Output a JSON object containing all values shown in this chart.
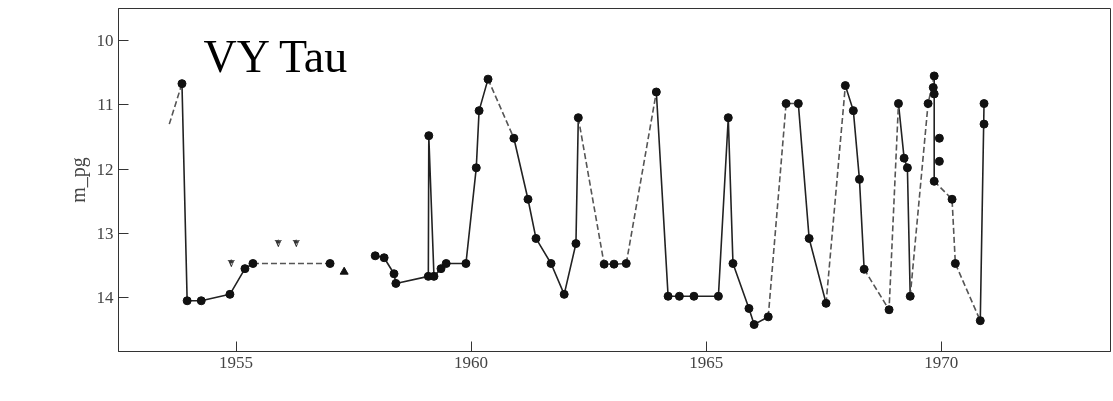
{
  "chart_data": {
    "type": "line",
    "title": "VY Tau",
    "ylabel": "m_pg",
    "xlim": [
      1952.5,
      1973.6
    ],
    "ylim": [
      14.84,
      9.5
    ],
    "xticks": [
      1955,
      1960,
      1965,
      1970
    ],
    "yticks": [
      10,
      11,
      12,
      13,
      14
    ],
    "grid": false,
    "series": [
      {
        "line_style": "solid",
        "color": "#222222",
        "x": [
          1953.85,
          1953.96,
          1954.26,
          1954.87,
          1955.19,
          1955.36,
          null,
          1957.96,
          1958.15,
          1958.36,
          1958.4,
          1959.09,
          1959.1,
          1959.21,
          1959.36,
          1959.47,
          1959.89,
          1960.11,
          1960.17,
          1960.36,
          null,
          1960.91,
          1961.21,
          1961.38,
          1961.7,
          1961.98,
          1962.23,
          1962.28,
          null,
          1963.94,
          1964.19,
          1964.43,
          1964.74,
          1965.26,
          1965.47,
          1965.57,
          1965.91,
          1966.02,
          1966.32,
          null,
          1966.96,
          1967.19,
          1967.55,
          null,
          1967.96,
          1968.13,
          1968.26,
          1968.36,
          null,
          1969.09,
          1969.21,
          1969.28,
          1969.34,
          null,
          1969.85,
          1969.85,
          null,
          1970.83,
          1970.91
        ],
        "values": [
          10.67,
          14.05,
          14.05,
          13.95,
          13.55,
          13.47,
          null,
          13.35,
          13.38,
          13.63,
          13.78,
          13.67,
          11.48,
          13.67,
          13.55,
          13.47,
          13.47,
          11.98,
          11.09,
          10.6,
          null,
          11.52,
          12.47,
          13.08,
          13.47,
          13.95,
          13.16,
          11.2,
          null,
          10.8,
          13.98,
          13.98,
          13.98,
          13.98,
          11.2,
          13.47,
          14.17,
          14.42,
          14.3,
          null,
          10.98,
          13.08,
          14.09,
          null,
          10.7,
          11.09,
          12.16,
          13.56,
          null,
          10.98,
          11.83,
          11.98,
          13.98,
          null,
          10.55,
          12.19,
          null,
          14.36,
          10.98
        ]
      },
      {
        "line_style": "dashed",
        "color": "#555555",
        "x": [
          1953.58,
          1953.85,
          null,
          1955.36,
          1957.0,
          null,
          1960.36,
          1960.91,
          null,
          1962.28,
          1962.83,
          1963.04,
          1963.3,
          1963.94,
          null,
          1966.32,
          1966.7,
          1966.96,
          null,
          1967.55,
          1967.96,
          null,
          1968.36,
          1968.89,
          1969.09,
          null,
          1969.34,
          1969.72,
          1969.85,
          null,
          1969.85,
          1970.23,
          1970.3,
          1970.83
        ],
        "values": [
          11.3,
          10.67,
          null,
          13.47,
          13.47,
          null,
          10.6,
          11.52,
          null,
          11.2,
          13.48,
          13.48,
          13.47,
          10.8,
          null,
          14.3,
          10.98,
          10.98,
          null,
          14.09,
          10.7,
          null,
          13.56,
          14.19,
          10.98,
          null,
          13.98,
          10.98,
          10.55,
          null,
          12.19,
          12.47,
          13.47,
          14.36
        ]
      },
      {
        "type": "scatter",
        "marker": "circle",
        "color": "#111111",
        "x": [
          1953.85,
          1953.96,
          1954.26,
          1954.87,
          1955.19,
          1955.36,
          1957.0,
          1957.96,
          1958.15,
          1958.36,
          1958.4,
          1959.09,
          1959.1,
          1959.21,
          1959.36,
          1959.47,
          1959.89,
          1960.11,
          1960.17,
          1960.36,
          1960.91,
          1961.21,
          1961.38,
          1961.7,
          1961.98,
          1962.23,
          1962.28,
          1962.83,
          1963.04,
          1963.3,
          1963.94,
          1964.19,
          1964.43,
          1964.74,
          1965.26,
          1965.47,
          1965.57,
          1965.91,
          1966.02,
          1966.32,
          1966.7,
          1966.96,
          1967.19,
          1967.55,
          1967.96,
          1968.13,
          1968.26,
          1968.36,
          1968.89,
          1969.09,
          1969.21,
          1969.28,
          1969.34,
          1969.72,
          1969.85,
          1969.83,
          1969.85,
          1969.96,
          1969.96,
          1969.85,
          1970.23,
          1970.3,
          1970.83,
          1970.91,
          1970.91
        ],
        "values": [
          10.67,
          14.05,
          14.05,
          13.95,
          13.55,
          13.47,
          13.47,
          13.35,
          13.38,
          13.63,
          13.78,
          13.67,
          11.48,
          13.67,
          13.55,
          13.47,
          13.47,
          11.98,
          11.09,
          10.6,
          11.52,
          12.47,
          13.08,
          13.47,
          13.95,
          13.16,
          11.2,
          13.48,
          13.48,
          13.47,
          10.8,
          13.98,
          13.98,
          13.98,
          13.98,
          11.2,
          13.47,
          14.17,
          14.42,
          14.3,
          10.98,
          10.98,
          13.08,
          14.09,
          10.7,
          11.09,
          12.16,
          13.56,
          14.19,
          10.98,
          11.83,
          11.98,
          13.98,
          10.98,
          10.55,
          10.73,
          10.83,
          11.52,
          11.88,
          12.19,
          12.47,
          13.47,
          14.36,
          11.3,
          10.98
        ]
      },
      {
        "type": "scatter",
        "marker": "triangle",
        "color": "#111111",
        "x": [
          1957.3
        ],
        "values": [
          13.6
        ]
      },
      {
        "type": "scatter",
        "marker": "none",
        "color": "#333333",
        "x": [
          1954.9,
          1955.9,
          1956.28
        ],
        "values": [
          13.44,
          13.13,
          13.13
        ],
        "value_labels": [
          "v",
          "v",
          "v"
        ]
      }
    ]
  }
}
